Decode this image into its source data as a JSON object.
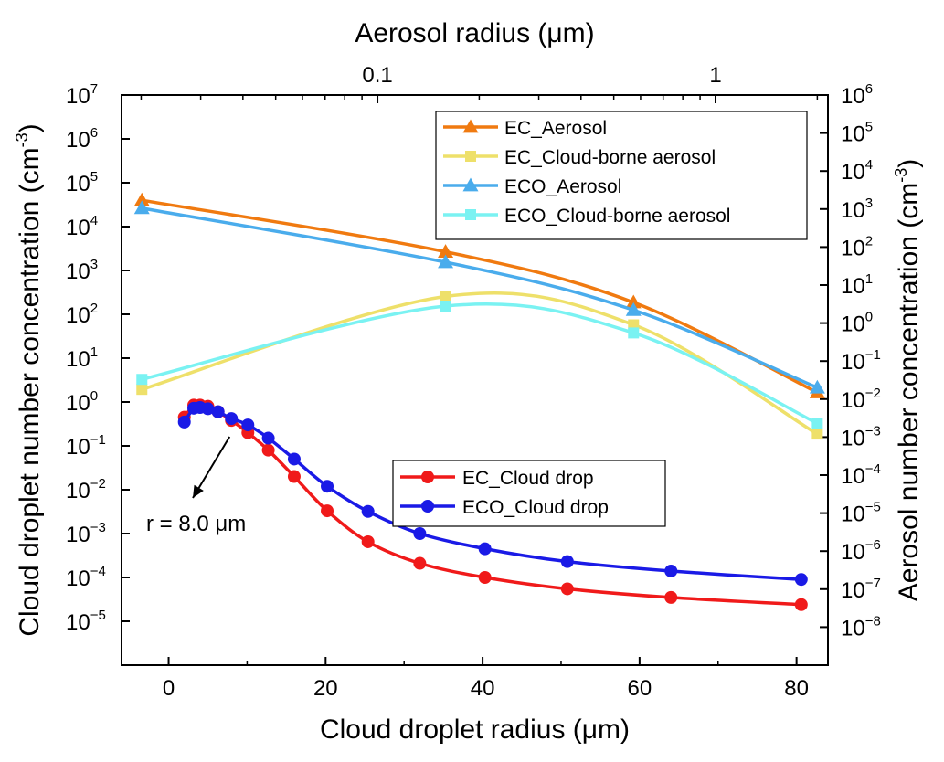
{
  "chart_data": {
    "type": "line",
    "title": "",
    "bottom_axis": {
      "label": "Cloud droplet radius (μm)",
      "range": [
        -6,
        84
      ],
      "ticks": [
        0,
        20,
        40,
        60,
        80
      ],
      "tick_labels": [
        "0",
        "20",
        "40",
        "60",
        "80"
      ]
    },
    "top_axis": {
      "label": "Aerosol radius (μm)",
      "scale": "log",
      "range": [
        0.0175,
        2.15
      ],
      "ticks": [
        0.1,
        1
      ],
      "tick_labels": [
        "0.1",
        "1"
      ]
    },
    "left_axis": {
      "label": "Cloud droplet number concentration (cm",
      "label_sup": "-3",
      "label_end": ")",
      "scale": "log",
      "range": [
        1e-06,
        10000000.0
      ],
      "tick_exponents": [
        -5,
        -4,
        -3,
        -2,
        -1,
        0,
        1,
        2,
        3,
        4,
        5,
        6,
        7
      ]
    },
    "right_axis": {
      "label": "Aerosol number concentration (cm",
      "label_sup": "-3",
      "label_end": ")",
      "scale": "log",
      "range": [
        1e-09,
        1000000.0
      ],
      "tick_exponents": [
        -8,
        -7,
        -6,
        -5,
        -4,
        -3,
        -2,
        -1,
        0,
        1,
        2,
        3,
        4,
        5,
        6
      ]
    },
    "legend_aerosol": [
      "EC_Aerosol",
      "EC_Cloud-borne aerosol",
      "ECO_Aerosol",
      "ECO_Cloud-borne aerosol"
    ],
    "legend_cloud": [
      "EC_Cloud drop",
      "ECO_Cloud drop"
    ],
    "annotation": {
      "text": "r = 8.0 μm",
      "points_to_x": 8.0
    },
    "series": [
      {
        "name": "EC_Aerosol",
        "axis": "top-right",
        "color": "#F07A10",
        "marker": "triangle",
        "x": [
          0.0201,
          0.159,
          0.572,
          2.0
        ],
        "y": [
          1700,
          75,
          3.5,
          0.015
        ]
      },
      {
        "name": "EC_Cloud-borne aerosol",
        "axis": "top-right",
        "color": "#EEE06A",
        "marker": "square",
        "x": [
          0.0201,
          0.159,
          0.572,
          2.0
        ],
        "y": [
          0.018,
          5.0,
          0.9,
          0.0012
        ]
      },
      {
        "name": "ECO_Aerosol",
        "axis": "top-right",
        "color": "#4AACEC",
        "marker": "triangle",
        "x": [
          0.0201,
          0.159,
          0.572,
          2.0
        ],
        "y": [
          1050,
          40,
          2.2,
          0.02
        ]
      },
      {
        "name": "ECO_Cloud-borne aerosol",
        "axis": "top-right",
        "color": "#7AF2F2",
        "marker": "square",
        "x": [
          0.0201,
          0.159,
          0.572,
          2.0
        ],
        "y": [
          0.033,
          2.8,
          0.55,
          0.0023
        ]
      },
      {
        "name": "EC_Cloud drop",
        "axis": "bottom-left",
        "color": "#F01A1A",
        "marker": "circle",
        "x": [
          2.0,
          3.2,
          4.0,
          5.0,
          6.3,
          8.0,
          10.1,
          12.7,
          16.0,
          20.2,
          25.4,
          32.0,
          40.3,
          50.8,
          64.0,
          80.6
        ],
        "y": [
          0.45,
          0.85,
          0.85,
          0.8,
          0.6,
          0.38,
          0.2,
          0.08,
          0.02,
          0.0033,
          0.00065,
          0.00021,
          0.0001,
          5.5e-05,
          3.5e-05,
          2.4e-05
        ]
      },
      {
        "name": "ECO_Cloud drop",
        "axis": "bottom-left",
        "color": "#1A1AE6",
        "marker": "circle",
        "x": [
          2.0,
          3.2,
          4.0,
          5.0,
          6.3,
          8.0,
          10.1,
          12.7,
          16.0,
          20.2,
          25.4,
          32.0,
          40.3,
          50.8,
          64.0,
          80.6
        ],
        "y": [
          0.35,
          0.72,
          0.75,
          0.7,
          0.6,
          0.42,
          0.3,
          0.15,
          0.05,
          0.012,
          0.0032,
          0.001,
          0.00045,
          0.00023,
          0.00014,
          9e-05
        ]
      }
    ]
  }
}
